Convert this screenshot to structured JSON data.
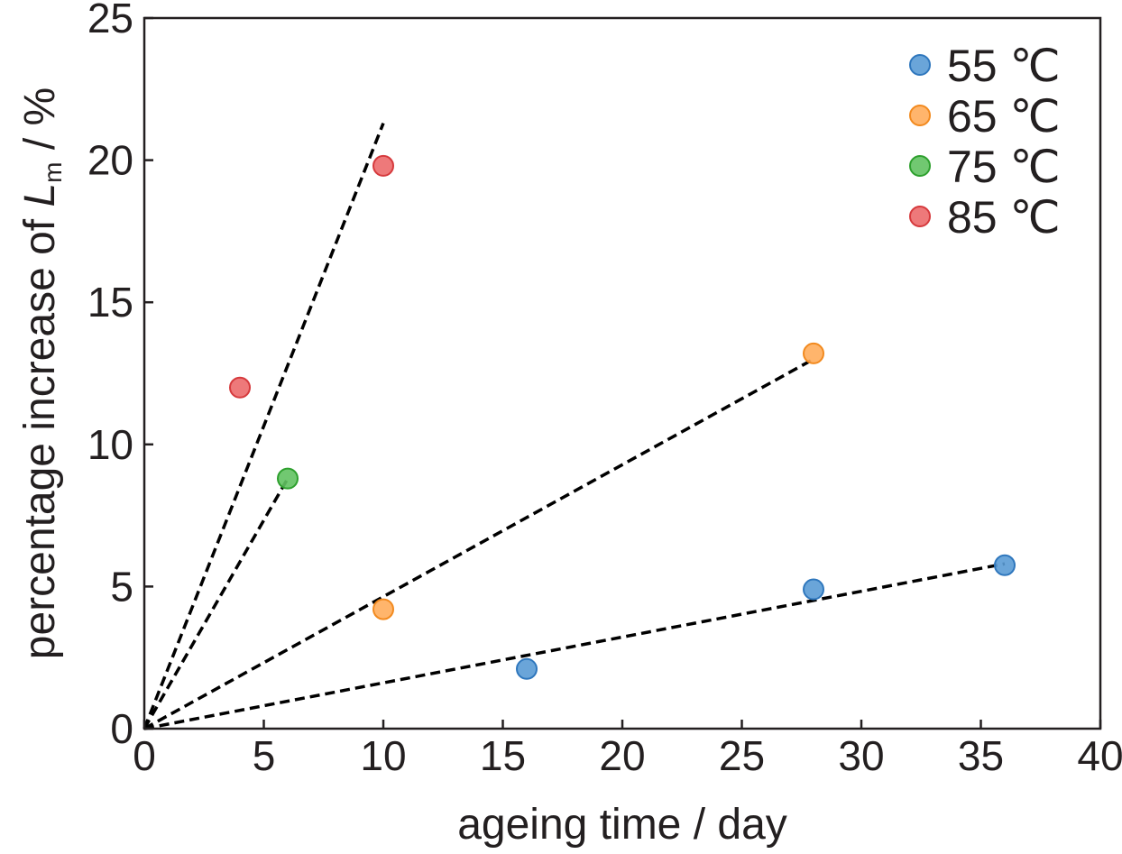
{
  "chart_data": {
    "type": "scatter",
    "xlabel": "ageing time / day",
    "ylabel": {
      "prefix": "percentage increase of ",
      "symbol": "L",
      "subscript": "m",
      "suffix": " / %"
    },
    "xlim": [
      0,
      40
    ],
    "ylim": [
      0,
      25
    ],
    "xticks": [
      0,
      5,
      10,
      15,
      20,
      25,
      30,
      35,
      40
    ],
    "yticks": [
      0,
      5,
      10,
      15,
      20,
      25
    ],
    "xtick_labels": [
      "0",
      "5",
      "10",
      "15",
      "20",
      "25",
      "30",
      "35",
      "40"
    ],
    "ytick_labels": [
      "0",
      "5",
      "10",
      "15",
      "20",
      "25"
    ],
    "grid": false,
    "legend_position": "top-right",
    "series": [
      {
        "name": "55 ℃",
        "color": "#5a9bd5",
        "edge_color": "#2f77bd",
        "points": [
          {
            "x": 16,
            "y": 2.1
          },
          {
            "x": 28,
            "y": 4.9
          },
          {
            "x": 36,
            "y": 5.75
          }
        ],
        "fit_line": {
          "x": [
            0,
            36
          ],
          "y": [
            0,
            5.8
          ]
        }
      },
      {
        "name": "65 ℃",
        "color": "#ffad5c",
        "edge_color": "#f28a1f",
        "points": [
          {
            "x": 10,
            "y": 4.2
          },
          {
            "x": 28,
            "y": 13.2
          }
        ],
        "fit_line": {
          "x": [
            0,
            28
          ],
          "y": [
            0,
            13.0
          ]
        }
      },
      {
        "name": "75 ℃",
        "color": "#62c262",
        "edge_color": "#2ea02e",
        "points": [
          {
            "x": 6,
            "y": 8.8
          }
        ],
        "fit_line": {
          "x": [
            0,
            6
          ],
          "y": [
            0,
            8.8
          ]
        }
      },
      {
        "name": "85 ℃",
        "color": "#ec6a6c",
        "edge_color": "#d63a3d",
        "points": [
          {
            "x": 4,
            "y": 12.0
          },
          {
            "x": 10,
            "y": 19.8
          }
        ],
        "fit_line": {
          "x": [
            0,
            10
          ],
          "y": [
            0,
            21.3
          ]
        }
      }
    ]
  }
}
